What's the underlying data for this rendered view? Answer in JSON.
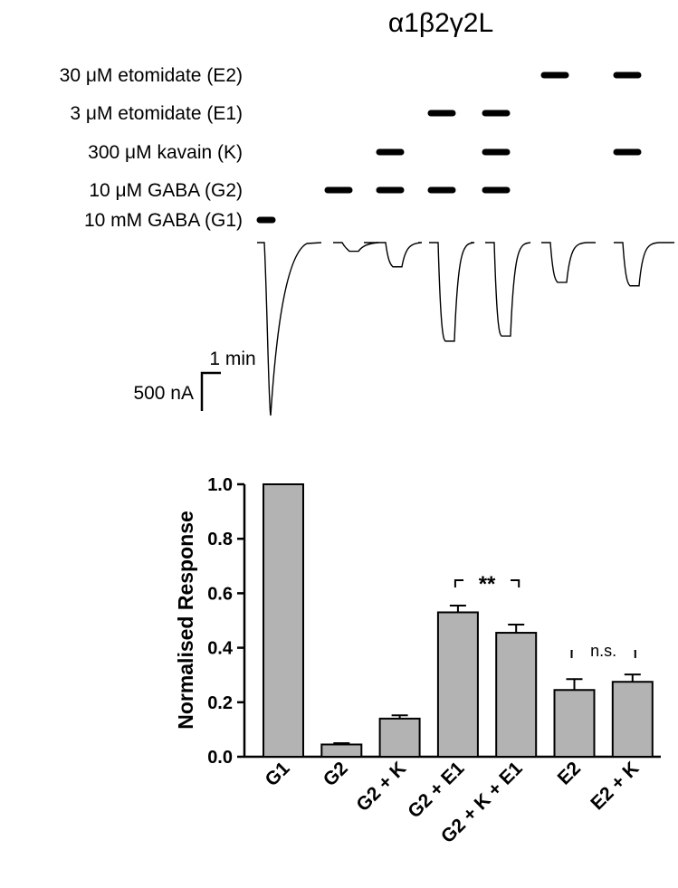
{
  "figure": {
    "title": "α1β2γ2L",
    "scale_time": "1 min",
    "scale_current": "500 nA"
  },
  "drug_rows": [
    {
      "label": "30 μM etomidate (E2)",
      "applied_in": [
        5,
        6
      ]
    },
    {
      "label": "3 μM etomidate (E1)",
      "applied_in": [
        3,
        4
      ]
    },
    {
      "label": "300 μM kavain (K)",
      "applied_in": [
        2,
        4,
        6
      ]
    },
    {
      "label": "10 μM GABA (G2)",
      "applied_in": [
        1,
        2,
        3,
        4
      ]
    },
    {
      "label": "10 mM GABA (G1)",
      "applied_in": [
        0
      ]
    }
  ],
  "trace_peaks_fraction": [
    1.0,
    0.05,
    0.14,
    0.57,
    0.54,
    0.23,
    0.25
  ],
  "chart_data": {
    "type": "bar",
    "categories": [
      "G1",
      "G2",
      "G2 + K",
      "G2 + E1",
      "G2 + K + E1",
      "E2",
      "E2 + K"
    ],
    "values": [
      1.0,
      0.045,
      0.14,
      0.53,
      0.455,
      0.245,
      0.275
    ],
    "errors": [
      0,
      0.005,
      0.012,
      0.025,
      0.03,
      0.04,
      0.027
    ],
    "ylabel": "Normalised Response",
    "xlabel": "",
    "ylim": [
      0,
      1.0
    ],
    "yticks": [
      "0.0",
      "0.2",
      "0.4",
      "0.6",
      "0.8",
      "1.0"
    ],
    "bar_color": "#b3b3b3",
    "significance": [
      {
        "from": 3,
        "to": 4,
        "label": "**"
      },
      {
        "from": 5,
        "to": 6,
        "label": "n.s."
      }
    ]
  }
}
